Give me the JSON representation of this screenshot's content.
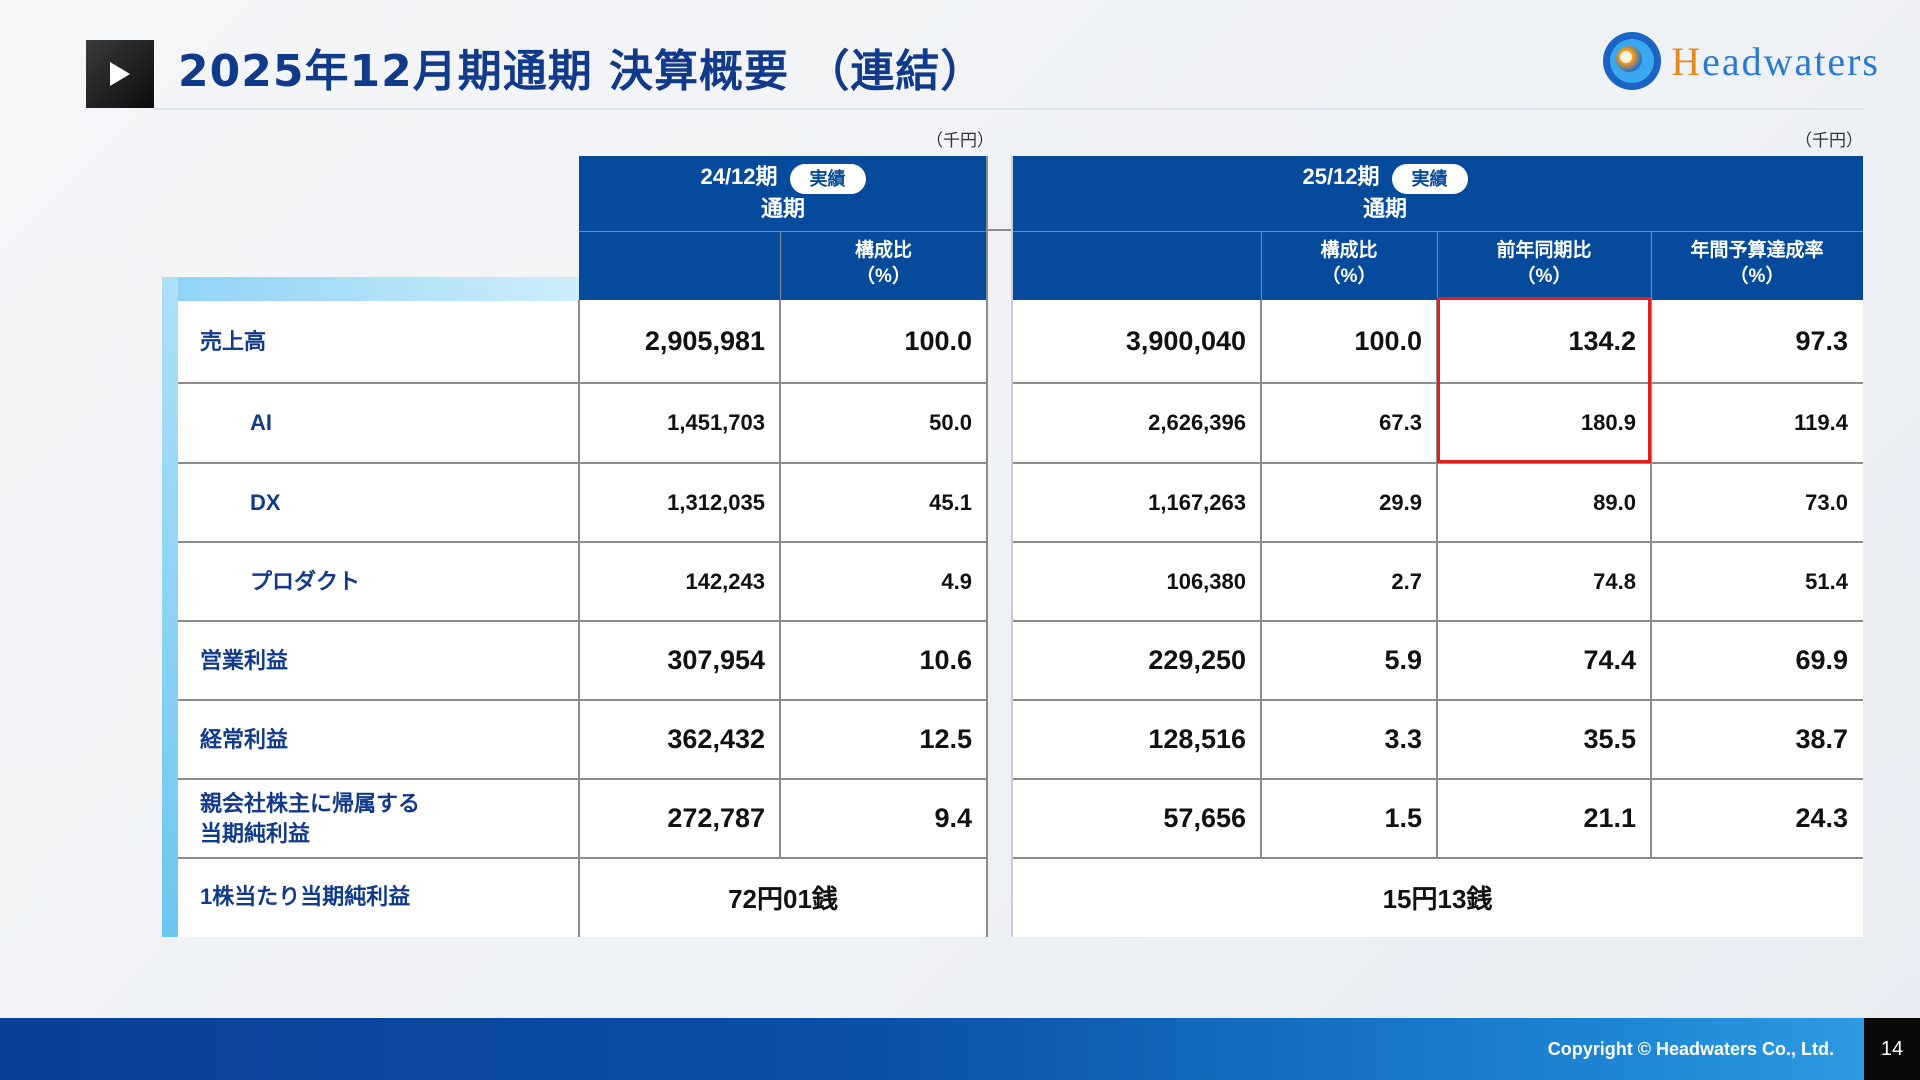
{
  "title": "2025年12月期通期 決算概要 （連結）",
  "logo": {
    "text": "Headwaters"
  },
  "unit_left": "（千円）",
  "unit_right": "（千円）",
  "group_prev": {
    "period": "24/12期",
    "period_sub": "通期",
    "badge": "実績"
  },
  "group_curr": {
    "period": "25/12期",
    "period_sub": "通期",
    "badge": "実績"
  },
  "columns": {
    "prev_ratio": "構成比\n（%）",
    "curr_ratio": "構成比\n（%）",
    "yoy": "前年同期比\n（%）",
    "budget": "年間予算達成率\n（%）"
  },
  "rows": [
    {
      "label": "売上高",
      "prev": "2,905,981",
      "prev_ratio": "100.0",
      "curr": "3,900,040",
      "curr_ratio": "100.0",
      "yoy": "134.2",
      "budget": "97.3"
    },
    {
      "label": "AI",
      "prev": "1,451,703",
      "prev_ratio": "50.0",
      "curr": "2,626,396",
      "curr_ratio": "67.3",
      "yoy": "180.9",
      "budget": "119.4"
    },
    {
      "label": "DX",
      "prev": "1,312,035",
      "prev_ratio": "45.1",
      "curr": "1,167,263",
      "curr_ratio": "29.9",
      "yoy": "89.0",
      "budget": "73.0"
    },
    {
      "label": "プロダクト",
      "prev": "142,243",
      "prev_ratio": "4.9",
      "curr": "106,380",
      "curr_ratio": "2.7",
      "yoy": "74.8",
      "budget": "51.4"
    },
    {
      "label": "営業利益",
      "prev": "307,954",
      "prev_ratio": "10.6",
      "curr": "229,250",
      "curr_ratio": "5.9",
      "yoy": "74.4",
      "budget": "69.9"
    },
    {
      "label": "経常利益",
      "prev": "362,432",
      "prev_ratio": "12.5",
      "curr": "128,516",
      "curr_ratio": "3.3",
      "yoy": "35.5",
      "budget": "38.7"
    },
    {
      "label": "親会社株主に帰属する\n当期純利益",
      "prev": "272,787",
      "prev_ratio": "9.4",
      "curr": "57,656",
      "curr_ratio": "1.5",
      "yoy": "21.1",
      "budget": "24.3"
    }
  ],
  "eps": {
    "label": "1株当たり当期純利益",
    "prev": "72円01銭",
    "curr": "15円13銭"
  },
  "footer": {
    "copyright": "Copyright © Headwaters Co., Ltd.",
    "page": "14"
  }
}
